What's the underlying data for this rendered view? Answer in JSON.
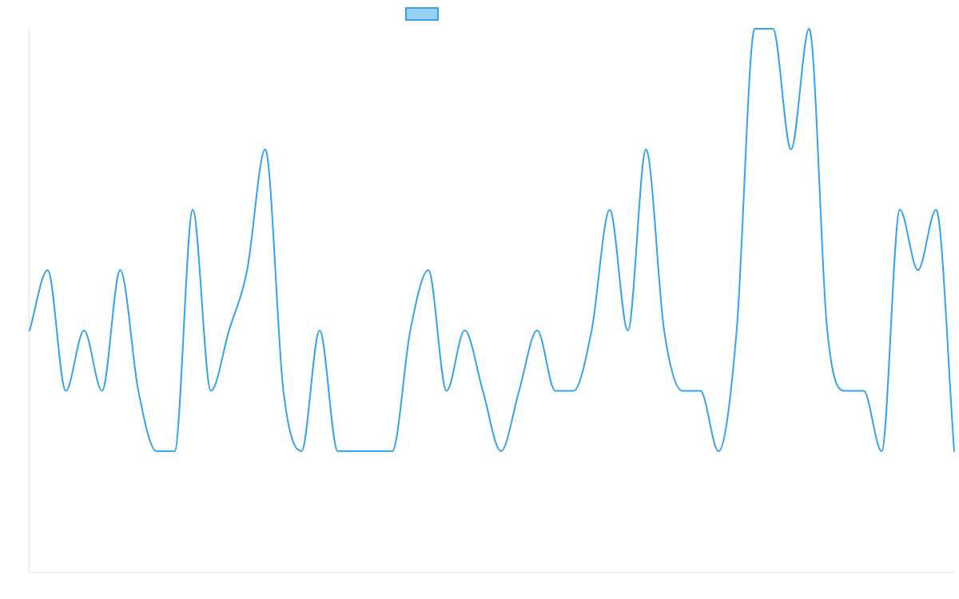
{
  "chart_data": {
    "type": "line",
    "title": "",
    "xlabel": "",
    "ylabel": "",
    "ylim": [
      0,
      9
    ],
    "grid": false,
    "legend_placement": "top-center",
    "x": [
      0,
      1,
      2,
      3,
      4,
      5,
      6,
      7,
      8,
      9,
      10,
      11,
      12,
      13,
      14,
      15,
      16,
      17,
      18,
      19,
      20,
      21,
      22,
      23,
      24,
      25,
      26,
      27,
      28,
      29,
      30,
      31,
      32,
      33,
      34,
      35,
      36,
      37,
      38,
      39,
      40,
      41,
      42,
      43,
      44,
      45,
      46,
      47,
      48,
      49,
      50,
      51
    ],
    "series": [
      {
        "name": "",
        "color": "#36a2eb",
        "fill": "#9ad0f5",
        "values": [
          4,
          5,
          3,
          4,
          3,
          5,
          3,
          2,
          2,
          6,
          3,
          4,
          5,
          7,
          3,
          2,
          4,
          2,
          2,
          2,
          2,
          4,
          5,
          3,
          4,
          3,
          2,
          3,
          4,
          3,
          3,
          4,
          6,
          4,
          7,
          4,
          3,
          3,
          2,
          4,
          9,
          9,
          7,
          9,
          4,
          3,
          3,
          2,
          6,
          5,
          6,
          2
        ]
      }
    ]
  }
}
